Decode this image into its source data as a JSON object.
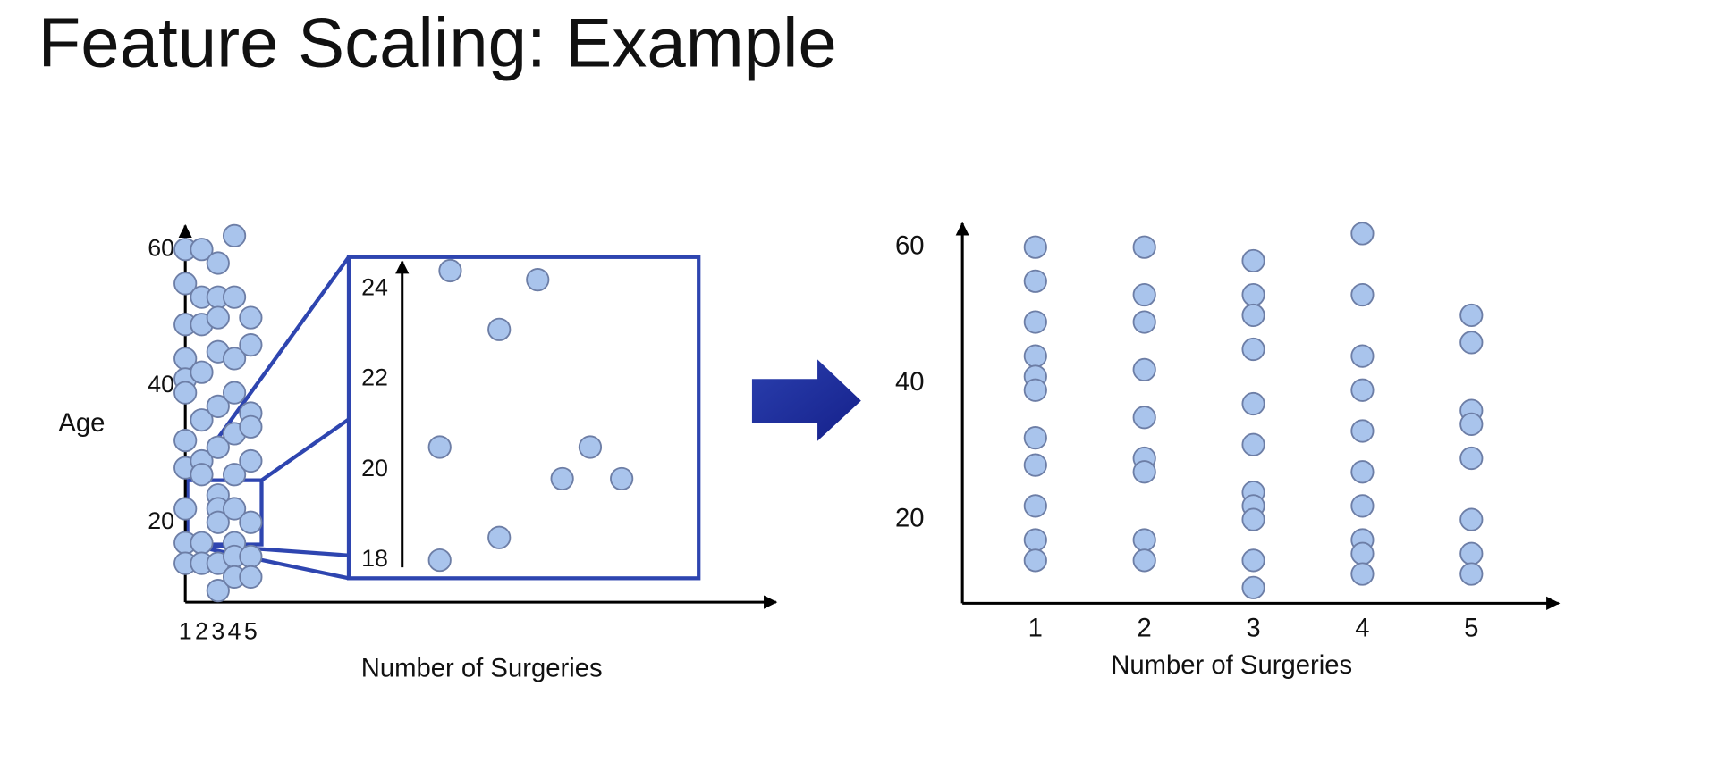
{
  "title": "Feature Scaling: Example",
  "chart_data": [
    {
      "type": "scatter",
      "ylabel": "Age",
      "xlabel": "Number of Surgeries",
      "xlim": [
        1,
        37.1
      ],
      "ylim": [
        8.3,
        63.5
      ],
      "xticks": [
        1,
        2,
        3,
        4,
        5
      ],
      "yticks": [
        20,
        40,
        60
      ],
      "color": "#a9c4ec",
      "x": [
        1,
        1,
        1,
        1,
        1,
        1,
        1,
        1,
        1,
        1,
        1,
        2,
        2,
        2,
        2,
        2,
        2,
        2,
        2,
        2,
        3,
        3,
        3,
        3,
        3,
        3,
        3,
        3,
        3,
        3,
        3,
        4,
        4,
        4,
        4,
        4,
        4,
        4,
        4,
        4,
        4,
        5,
        5,
        5,
        5,
        5,
        5,
        5,
        5
      ],
      "y": [
        60,
        55,
        49,
        44,
        41,
        39,
        32,
        28,
        22,
        17,
        14,
        60,
        53,
        49,
        42,
        35,
        29,
        27,
        17,
        14,
        58,
        53,
        50,
        45,
        37,
        31,
        24,
        22,
        20,
        14,
        10,
        62,
        53,
        44,
        39,
        33,
        27,
        22,
        17,
        15,
        12,
        50,
        46,
        36,
        34,
        29,
        20,
        15,
        12
      ]
    },
    {
      "type": "scatter",
      "xlim": [
        0,
        10
      ],
      "ylim": [
        17.6,
        24.7
      ],
      "yticks": [
        18,
        20,
        22,
        24
      ],
      "color": "#a9c4ec",
      "x": [
        2.9,
        5.4,
        4.3,
        2.6,
        6.9,
        6.1,
        7.8,
        4.3,
        2.6
      ],
      "y": [
        24.4,
        24.2,
        23.1,
        20.5,
        20.5,
        19.8,
        19.8,
        18.5,
        18.0
      ]
    },
    {
      "type": "scatter",
      "xlabel": "Number of Surgeries",
      "xlim": [
        0.33,
        5.8
      ],
      "ylim": [
        7.7,
        63.5
      ],
      "xticks": [
        1,
        2,
        3,
        4,
        5
      ],
      "yticks": [
        20,
        40,
        60
      ],
      "color": "#a9c4ec",
      "x": [
        1,
        1,
        1,
        1,
        1,
        1,
        1,
        1,
        1,
        1,
        1,
        2,
        2,
        2,
        2,
        2,
        2,
        2,
        2,
        2,
        3,
        3,
        3,
        3,
        3,
        3,
        3,
        3,
        3,
        3,
        3,
        4,
        4,
        4,
        4,
        4,
        4,
        4,
        4,
        4,
        4,
        5,
        5,
        5,
        5,
        5,
        5,
        5,
        5
      ],
      "y": [
        60,
        55,
        49,
        44,
        41,
        39,
        32,
        28,
        22,
        17,
        14,
        60,
        53,
        49,
        42,
        35,
        29,
        27,
        17,
        14,
        58,
        53,
        50,
        45,
        37,
        31,
        24,
        22,
        20,
        14,
        10,
        62,
        53,
        44,
        39,
        33,
        27,
        22,
        17,
        15,
        12,
        50,
        46,
        36,
        34,
        29,
        20,
        15,
        12
      ]
    }
  ]
}
